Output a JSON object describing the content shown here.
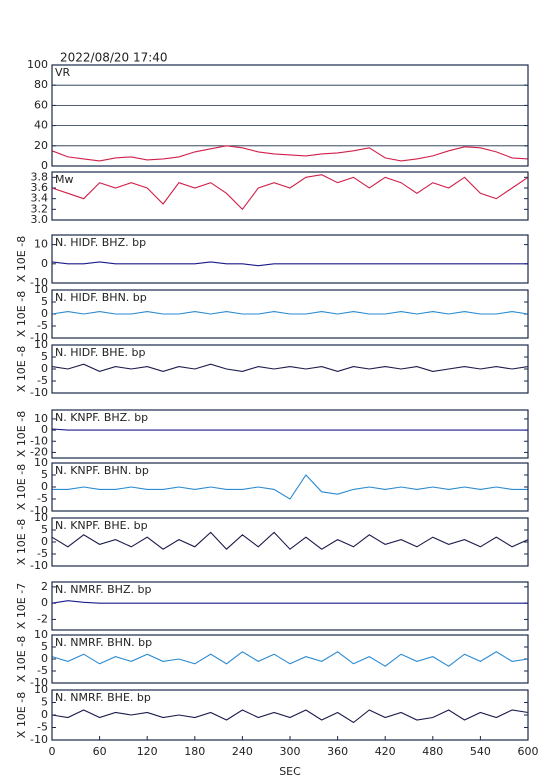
{
  "chart_data": [
    {
      "type": "line",
      "title": "2022/08/20 17:40",
      "label": "VR",
      "color": "#d0204a",
      "grid": true,
      "xlim": [
        0,
        600
      ],
      "ylim": [
        0,
        100
      ],
      "yticks": [
        0,
        20,
        40,
        60,
        80,
        100
      ],
      "x": [
        0,
        20,
        40,
        60,
        80,
        100,
        120,
        140,
        160,
        180,
        200,
        220,
        240,
        260,
        280,
        300,
        320,
        340,
        360,
        380,
        400,
        420,
        440,
        460,
        480,
        500,
        520,
        540,
        560,
        580,
        600
      ],
      "values": [
        15,
        9,
        7,
        5,
        8,
        9,
        6,
        7,
        9,
        14,
        17,
        20,
        18,
        14,
        12,
        11,
        10,
        12,
        13,
        15,
        18,
        8,
        5,
        7,
        10,
        15,
        19,
        18,
        14,
        8,
        7
      ]
    },
    {
      "type": "line",
      "label": "Mw",
      "color": "#d0204a",
      "xlim": [
        0,
        600
      ],
      "ylim": [
        3,
        3.9
      ],
      "yticks": [
        {
          "value": 3,
          "label": "3.0"
        },
        3.2,
        3.4,
        3.6,
        3.8
      ],
      "x": [
        0,
        20,
        40,
        60,
        80,
        100,
        120,
        140,
        160,
        180,
        200,
        220,
        240,
        260,
        280,
        300,
        320,
        340,
        360,
        380,
        400,
        420,
        440,
        460,
        480,
        500,
        520,
        540,
        560,
        580,
        600
      ],
      "values": [
        3.6,
        3.5,
        3.4,
        3.7,
        3.6,
        3.7,
        3.6,
        3.3,
        3.7,
        3.6,
        3.7,
        3.5,
        3.2,
        3.6,
        3.7,
        3.6,
        3.8,
        3.85,
        3.7,
        3.8,
        3.6,
        3.8,
        3.7,
        3.5,
        3.7,
        3.6,
        3.8,
        3.5,
        3.4,
        3.6,
        3.8
      ]
    },
    {
      "type": "line",
      "label": "N. HIDF. BHZ. bp",
      "ylabel": "X 10E -8",
      "color": "#1a1a8c",
      "xlim": [
        0,
        600
      ],
      "ylim": [
        -10,
        15
      ],
      "yticks": [
        10,
        0,
        -10
      ],
      "x": [
        0,
        20,
        40,
        60,
        80,
        100,
        120,
        140,
        160,
        180,
        200,
        220,
        240,
        260,
        280,
        300,
        320,
        340,
        360,
        380,
        400,
        420,
        440,
        460,
        480,
        500,
        520,
        540,
        560,
        580,
        600
      ],
      "values": [
        1,
        0,
        0,
        1,
        0,
        0,
        0,
        0,
        0,
        0,
        1,
        0,
        0,
        -1,
        0,
        0,
        0,
        0,
        0,
        0,
        0,
        0,
        0,
        0,
        0,
        0,
        0,
        0,
        0,
        0,
        0
      ]
    },
    {
      "type": "line",
      "label": "N. HIDF. BHN. bp",
      "ylabel": "X 10E -8",
      "color": "#2a8ad0",
      "xlim": [
        0,
        600
      ],
      "ylim": [
        -10,
        10
      ],
      "yticks": [
        10,
        5,
        0,
        -5,
        -10
      ],
      "x": [
        0,
        20,
        40,
        60,
        80,
        100,
        120,
        140,
        160,
        180,
        200,
        220,
        240,
        260,
        280,
        300,
        320,
        340,
        360,
        380,
        400,
        420,
        440,
        460,
        480,
        500,
        520,
        540,
        560,
        580,
        600
      ],
      "values": [
        0,
        1,
        0,
        1,
        0,
        0,
        1,
        0,
        0,
        1,
        0,
        1,
        0,
        0,
        1,
        0,
        0,
        1,
        0,
        1,
        0,
        0,
        1,
        0,
        1,
        0,
        1,
        0,
        0,
        1,
        0
      ]
    },
    {
      "type": "line",
      "label": "N. HIDF. BHE. bp",
      "ylabel": "X 10E -8",
      "color": "#1a1a4a",
      "xlim": [
        0,
        600
      ],
      "ylim": [
        -10,
        10
      ],
      "yticks": [
        10,
        5,
        0,
        -5,
        -10
      ],
      "x": [
        0,
        20,
        40,
        60,
        80,
        100,
        120,
        140,
        160,
        180,
        200,
        220,
        240,
        260,
        280,
        300,
        320,
        340,
        360,
        380,
        400,
        420,
        440,
        460,
        480,
        500,
        520,
        540,
        560,
        580,
        600
      ],
      "values": [
        1,
        0,
        2,
        -1,
        1,
        0,
        1,
        -1,
        1,
        0,
        2,
        0,
        -1,
        1,
        0,
        1,
        0,
        1,
        -1,
        1,
        0,
        1,
        0,
        1,
        -1,
        0,
        1,
        0,
        1,
        0,
        1
      ]
    },
    {
      "type": "line",
      "label": "N. KNPF. BHZ. bp",
      "ylabel": "X 10E -8",
      "color": "#1a1a8c",
      "xlim": [
        0,
        600
      ],
      "ylim": [
        -25,
        18
      ],
      "yticks": [
        10,
        0,
        -10,
        -20
      ],
      "x": [
        0,
        20,
        40,
        60,
        80,
        100,
        120,
        140,
        160,
        180,
        200,
        220,
        240,
        260,
        280,
        300,
        320,
        340,
        360,
        380,
        400,
        420,
        440,
        460,
        480,
        500,
        520,
        540,
        560,
        580,
        600
      ],
      "values": [
        1,
        0,
        0,
        0,
        0,
        0,
        0,
        0,
        0,
        0,
        0,
        0,
        0,
        0,
        0,
        0,
        0,
        0,
        0,
        0,
        0,
        0,
        0,
        0,
        0,
        0,
        0,
        0,
        0,
        0,
        0
      ]
    },
    {
      "type": "line",
      "label": "N. KNPF. BHN. bp",
      "ylabel": "X 10E -8",
      "color": "#2a8ad0",
      "xlim": [
        0,
        600
      ],
      "ylim": [
        -10,
        10
      ],
      "yticks": [
        10,
        5,
        0,
        -5,
        -10
      ],
      "x": [
        0,
        20,
        40,
        60,
        80,
        100,
        120,
        140,
        160,
        180,
        200,
        220,
        240,
        260,
        280,
        300,
        320,
        340,
        360,
        380,
        400,
        420,
        440,
        460,
        480,
        500,
        520,
        540,
        560,
        580,
        600
      ],
      "values": [
        -1,
        -1,
        0,
        -1,
        -1,
        0,
        -1,
        -1,
        0,
        -1,
        0,
        -1,
        -1,
        0,
        -1,
        -5,
        5,
        -2,
        -3,
        -1,
        0,
        -1,
        0,
        -1,
        0,
        -1,
        0,
        -1,
        0,
        -1,
        -1
      ]
    },
    {
      "type": "line",
      "label": "N. KNPF. BHE. bp",
      "ylabel": "X 10E -8",
      "color": "#1a1a4a",
      "xlim": [
        0,
        600
      ],
      "ylim": [
        -10,
        10
      ],
      "yticks": [
        10,
        5,
        0,
        -5,
        -10
      ],
      "x": [
        0,
        20,
        40,
        60,
        80,
        100,
        120,
        140,
        160,
        180,
        200,
        220,
        240,
        260,
        280,
        300,
        320,
        340,
        360,
        380,
        400,
        420,
        440,
        460,
        480,
        500,
        520,
        540,
        560,
        580,
        600
      ],
      "values": [
        2,
        -2,
        3,
        -1,
        1,
        -2,
        2,
        -3,
        1,
        -2,
        4,
        -3,
        3,
        -2,
        4,
        -3,
        2,
        -3,
        1,
        -2,
        3,
        -1,
        1,
        -2,
        2,
        -1,
        1,
        -2,
        2,
        -2,
        1
      ]
    },
    {
      "type": "line",
      "label": "N. NMRF. BHZ. bp",
      "ylabel": "X 10E -7",
      "color": "#1a1a8c",
      "xlim": [
        0,
        600
      ],
      "ylim": [
        -3.3,
        2.6
      ],
      "yticks": [
        2,
        0,
        -2
      ],
      "x": [
        0,
        20,
        40,
        60,
        80,
        100,
        120,
        140,
        160,
        180,
        200,
        220,
        240,
        260,
        280,
        300,
        320,
        340,
        360,
        380,
        400,
        420,
        440,
        460,
        480,
        500,
        520,
        540,
        560,
        580,
        600
      ],
      "values": [
        0,
        0.3,
        0.1,
        0,
        0,
        0,
        0,
        0,
        0,
        0,
        0,
        0,
        0,
        0,
        0,
        0,
        0,
        0,
        0,
        0,
        0,
        0,
        0,
        0,
        0,
        0,
        0,
        0,
        0,
        0,
        0
      ]
    },
    {
      "type": "line",
      "label": "N. NMRF. BHN. bp",
      "ylabel": "X 10E -8",
      "color": "#2a8ad0",
      "xlim": [
        0,
        600
      ],
      "ylim": [
        -10,
        10
      ],
      "yticks": [
        10,
        5,
        0,
        -5,
        -10
      ],
      "x": [
        0,
        20,
        40,
        60,
        80,
        100,
        120,
        140,
        160,
        180,
        200,
        220,
        240,
        260,
        280,
        300,
        320,
        340,
        360,
        380,
        400,
        420,
        440,
        460,
        480,
        500,
        520,
        540,
        560,
        580,
        600
      ],
      "values": [
        1,
        -1,
        2,
        -2,
        1,
        -1,
        2,
        -1,
        0,
        -2,
        2,
        -2,
        3,
        -1,
        2,
        -2,
        1,
        -1,
        3,
        -2,
        1,
        -3,
        2,
        -1,
        1,
        -3,
        2,
        -1,
        3,
        -1,
        0
      ]
    },
    {
      "type": "line",
      "label": "N. NMRF. BHE. bp",
      "ylabel": "X 10E -8",
      "color": "#1a1a4a",
      "xlabel": "SEC",
      "xticks": [
        0,
        60,
        120,
        180,
        240,
        300,
        360,
        420,
        480,
        540,
        600
      ],
      "xlim": [
        0,
        600
      ],
      "ylim": [
        -10,
        10
      ],
      "yticks": [
        10,
        5,
        0,
        -5,
        -10
      ],
      "x": [
        0,
        20,
        40,
        60,
        80,
        100,
        120,
        140,
        160,
        180,
        200,
        220,
        240,
        260,
        280,
        300,
        320,
        340,
        360,
        380,
        400,
        420,
        440,
        460,
        480,
        500,
        520,
        540,
        560,
        580,
        600
      ],
      "values": [
        0,
        -1,
        2,
        -1,
        1,
        0,
        1,
        -1,
        0,
        -1,
        1,
        -2,
        2,
        -1,
        1,
        -1,
        2,
        -2,
        1,
        -3,
        2,
        -1,
        1,
        -2,
        -1,
        2,
        -2,
        1,
        -1,
        2,
        1
      ]
    }
  ]
}
